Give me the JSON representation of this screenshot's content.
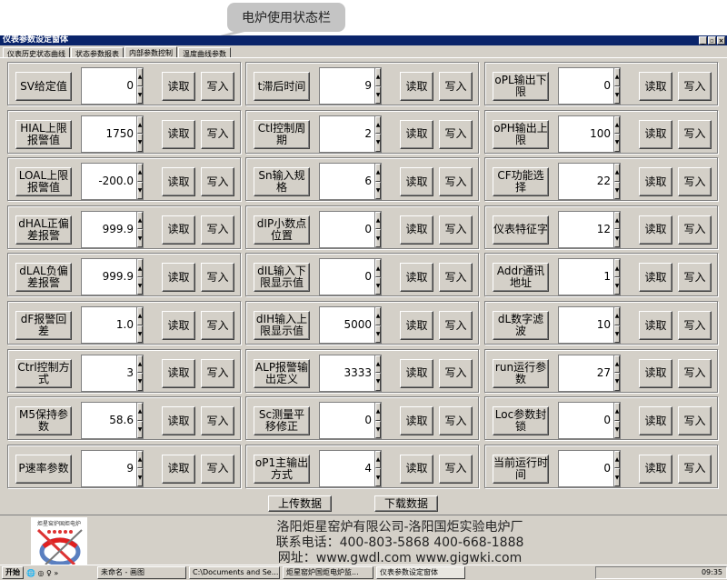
{
  "callout": "电炉使用状态栏",
  "window": {
    "title": "仪表参数设定窗体",
    "controls": [
      "_",
      "▫",
      "×"
    ]
  },
  "tabs": [
    {
      "label": "仪表历史状态曲线"
    },
    {
      "label": "状态参数报表"
    },
    {
      "label": "内部参数控制",
      "active": true
    },
    {
      "label": "温度曲线参数"
    }
  ],
  "buttons": {
    "read": "读取",
    "write": "写入",
    "upload": "上传数据",
    "download": "下载数据"
  },
  "columns": [
    [
      {
        "label": "SV给定值",
        "value": "0"
      },
      {
        "label": "HIAL上限报警值",
        "value": "1750"
      },
      {
        "label": "LOAL上限报警值",
        "value": "-200.0"
      },
      {
        "label": "dHAL正偏差报警",
        "value": "999.9"
      },
      {
        "label": "dLAL负偏差报警",
        "value": "999.9"
      },
      {
        "label": "dF报警回差",
        "value": "1.0"
      },
      {
        "label": "Ctrl控制方式",
        "value": "3"
      },
      {
        "label": "M5保持参数",
        "value": "58.6"
      },
      {
        "label": "P速率参数",
        "value": "9"
      }
    ],
    [
      {
        "label": "t滞后时间",
        "value": "9"
      },
      {
        "label": "Ctl控制周期",
        "value": "2"
      },
      {
        "label": "Sn输入规格",
        "value": "6"
      },
      {
        "label": "dIP小数点位置",
        "value": "0"
      },
      {
        "label": "dIL输入下限显示值",
        "value": "0"
      },
      {
        "label": "dIH输入上限显示值",
        "value": "5000"
      },
      {
        "label": "ALP报警输出定义",
        "value": "3333"
      },
      {
        "label": "Sc测量平移修正",
        "value": "0"
      },
      {
        "label": "oP1主输出方式",
        "value": "4"
      }
    ],
    [
      {
        "label": "oPL输出下限",
        "value": "0"
      },
      {
        "label": "oPH输出上限",
        "value": "100"
      },
      {
        "label": "CF功能选择",
        "value": "22"
      },
      {
        "label": "仪表特征字",
        "value": "12"
      },
      {
        "label": "Addr通讯地址",
        "value": "1"
      },
      {
        "label": "dL数字滤波",
        "value": "10"
      },
      {
        "label": "run运行参数",
        "value": "27"
      },
      {
        "label": "Loc参数封锁",
        "value": "0"
      },
      {
        "label": "当前运行时间",
        "value": "0"
      }
    ]
  ],
  "footer": {
    "company": "洛阳炬星窑炉有限公司-洛阳国炬实验电炉厂",
    "phone": "联系电话：400-803-5868 400-668-1888",
    "web": "网址：www.gwdl.com  www.gigwki.com",
    "logo_text": "炬星窑炉国炬电炉"
  },
  "taskbar": {
    "start": "开始",
    "items": [
      "未命名 - 画图",
      "C:\\Documents and Se...",
      "炬星窑炉国炬电炉监...",
      "仪表参数设定窗体"
    ],
    "clock": "09:35"
  }
}
